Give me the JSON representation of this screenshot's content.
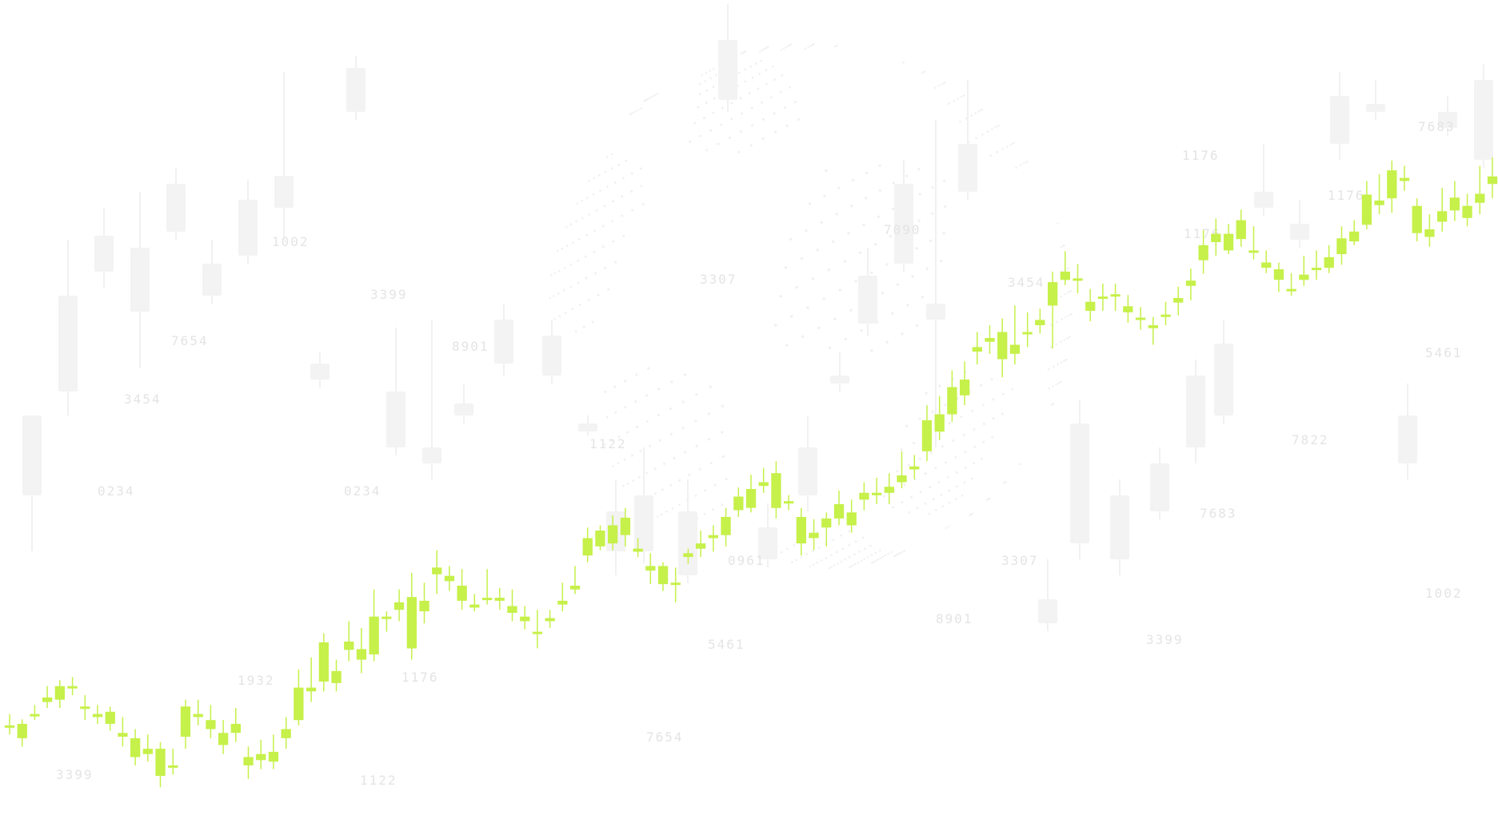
{
  "colors": {
    "accent": "#c6f04a",
    "background": "#ffffff",
    "ghost_text": "#e4e4e4",
    "globe_dots": "#f0f0f0"
  },
  "background_numbers": [
    "1002",
    "3399",
    "7654",
    "3454",
    "0234",
    "8901",
    "0234",
    "1122",
    "3307",
    "7090",
    "3454",
    "0961",
    "5461",
    "7654",
    "1932",
    "1176",
    "3307",
    "8901",
    "3399",
    "1176",
    "1176",
    "7683",
    "7822",
    "1176",
    "7683",
    "5461",
    "3399",
    "1002",
    "1122"
  ],
  "chart_data": {
    "type": "candlestick",
    "title": "",
    "xlabel": "",
    "ylabel": "",
    "ylim": [
      0,
      100
    ],
    "axes_visible": false,
    "grid": false,
    "legend": "none",
    "candles": [
      [
        12.2,
        12.4,
        11.2,
        13.9
      ],
      [
        12.6,
        10.7,
        9.6,
        13.2
      ],
      [
        13.6,
        13.9,
        13.1,
        15.1
      ],
      [
        15.5,
        16.1,
        14.7,
        17.6
      ],
      [
        15.8,
        17.6,
        14.7,
        18.4
      ],
      [
        17.6,
        17.4,
        16.4,
        18.8
      ],
      [
        14.7,
        14.9,
        13.1,
        16.4
      ],
      [
        13.9,
        13.5,
        12.6,
        15.1
      ],
      [
        14.2,
        12.6,
        11.7,
        14.9
      ],
      [
        11.4,
        10.9,
        9.6,
        13.5
      ],
      [
        10.7,
        8.2,
        7.1,
        11.9
      ],
      [
        8.6,
        9.3,
        7.6,
        11.2
      ],
      [
        9.3,
        5.7,
        4.2,
        10.2
      ],
      [
        6.8,
        7.1,
        5.9,
        9.3
      ],
      [
        10.9,
        14.9,
        9.3,
        15.8
      ],
      [
        13.9,
        13.5,
        12.4,
        15.8
      ],
      [
        11.9,
        13.1,
        10.7,
        15.1
      ],
      [
        11.4,
        9.8,
        8.6,
        13.1
      ],
      [
        11.4,
        12.6,
        10.2,
        14.7
      ],
      [
        7.1,
        8.2,
        5.3,
        9.6
      ],
      [
        7.8,
        8.6,
        6.6,
        10.5
      ],
      [
        8.9,
        7.6,
        6.6,
        11.2
      ],
      [
        10.7,
        11.9,
        9.3,
        13.5
      ],
      [
        13.1,
        17.4,
        12.4,
        19.8
      ],
      [
        17.4,
        16.9,
        15.5,
        21.4
      ],
      [
        18.2,
        23.4,
        16.9,
        24.6
      ],
      [
        19.6,
        18.0,
        16.9,
        21.1
      ],
      [
        22.4,
        23.5,
        20.9,
        26.2
      ],
      [
        22.5,
        21.1,
        19.3,
        25.3
      ],
      [
        21.8,
        26.8,
        20.9,
        30.4
      ],
      [
        26.5,
        26.8,
        24.8,
        27.5
      ],
      [
        27.7,
        28.7,
        26.2,
        30.4
      ],
      [
        29.4,
        22.6,
        21.1,
        32.6
      ],
      [
        27.5,
        28.9,
        25.9,
        31.3
      ],
      [
        33.3,
        32.4,
        29.8,
        35.6
      ],
      [
        32.2,
        31.5,
        30.2,
        33.5
      ],
      [
        30.9,
        28.9,
        27.7,
        33.1
      ],
      [
        28.4,
        28.0,
        27.5,
        29.8
      ],
      [
        29.3,
        29.3,
        28.4,
        33.1
      ],
      [
        28.9,
        29.3,
        27.7,
        30.6
      ],
      [
        28.2,
        27.3,
        26.2,
        30.4
      ],
      [
        26.8,
        26.2,
        25.1,
        28.2
      ],
      [
        24.8,
        24.8,
        22.6,
        27.7
      ],
      [
        26.2,
        26.6,
        25.3,
        27.7
      ],
      [
        28.4,
        28.9,
        27.5,
        31.3
      ],
      [
        30.4,
        30.9,
        29.8,
        33.5
      ],
      [
        34.9,
        37.2,
        34.0,
        38.6
      ],
      [
        36.1,
        38.2,
        35.6,
        38.9
      ],
      [
        38.9,
        36.5,
        35.6,
        40.2
      ],
      [
        37.6,
        39.9,
        36.1,
        41.2
      ],
      [
        35.4,
        35.8,
        34.7,
        37.2
      ],
      [
        32.9,
        33.5,
        31.1,
        35.2
      ],
      [
        33.5,
        31.1,
        30.2,
        34.0
      ],
      [
        31.3,
        31.3,
        28.7,
        33.3
      ],
      [
        34.7,
        35.2,
        33.8,
        35.8
      ],
      [
        35.8,
        36.5,
        34.7,
        38.2
      ],
      [
        37.2,
        37.6,
        35.4,
        38.9
      ],
      [
        37.6,
        40.0,
        36.1,
        41.2
      ],
      [
        40.9,
        42.7,
        40.0,
        43.9
      ],
      [
        43.7,
        41.2,
        40.6,
        45.6
      ],
      [
        44.6,
        44.1,
        43.2,
        46.5
      ],
      [
        45.8,
        41.2,
        39.8,
        47.4
      ],
      [
        42.1,
        42.1,
        40.9,
        42.9
      ],
      [
        36.5,
        40.0,
        34.9,
        41.2
      ],
      [
        37.2,
        37.9,
        35.6,
        39.7
      ],
      [
        38.6,
        39.8,
        36.1,
        40.6
      ],
      [
        39.8,
        41.7,
        38.9,
        43.5
      ],
      [
        40.6,
        38.9,
        37.9,
        42.3
      ],
      [
        42.3,
        43.2,
        40.9,
        44.6
      ],
      [
        43.2,
        43.2,
        41.7,
        45.2
      ],
      [
        44.0,
        43.2,
        41.7,
        45.8
      ],
      [
        44.6,
        45.5,
        43.8,
        48.7
      ],
      [
        46.3,
        46.7,
        45.0,
        48.2
      ],
      [
        48.7,
        52.8,
        47.4,
        54.8
      ],
      [
        51.3,
        53.6,
        50.2,
        56.0
      ],
      [
        53.6,
        57.2,
        52.6,
        59.4
      ],
      [
        56.1,
        58.2,
        54.8,
        60.6
      ],
      [
        62.5,
        61.9,
        60.2,
        64.5
      ],
      [
        63.7,
        63.2,
        61.6,
        65.4
      ],
      [
        60.9,
        64.5,
        58.5,
        66.3
      ],
      [
        62.8,
        61.6,
        60.2,
        68.0
      ],
      [
        64.5,
        64.5,
        62.5,
        67.1
      ],
      [
        65.4,
        66.1,
        64.3,
        67.6
      ],
      [
        68.0,
        71.1,
        62.3,
        72.5
      ],
      [
        71.4,
        72.5,
        70.7,
        75.2
      ],
      [
        71.6,
        71.4,
        69.6,
        73.5
      ],
      [
        68.5,
        67.3,
        65.9,
        70.2
      ],
      [
        69.2,
        69.2,
        67.3,
        70.9
      ],
      [
        69.2,
        69.5,
        67.3,
        70.9
      ],
      [
        67.9,
        67.1,
        65.7,
        69.4
      ],
      [
        66.4,
        66.1,
        64.8,
        67.8
      ],
      [
        65.4,
        65.0,
        62.8,
        66.5
      ],
      [
        66.8,
        66.8,
        65.4,
        68.5
      ],
      [
        68.4,
        69.0,
        66.7,
        70.5
      ],
      [
        70.6,
        71.3,
        68.7,
        72.9
      ],
      [
        74.0,
        76.0,
        72.2,
        78.0
      ],
      [
        76.4,
        77.5,
        74.6,
        79.5
      ],
      [
        77.5,
        75.3,
        74.8,
        78.8
      ],
      [
        79.3,
        76.8,
        75.8,
        80.7
      ],
      [
        75.3,
        75.3,
        74.1,
        78.5
      ],
      [
        73.0,
        73.7,
        72.3,
        75.3
      ],
      [
        72.8,
        71.4,
        69.8,
        73.7
      ],
      [
        70.2,
        70.0,
        69.3,
        72.3
      ],
      [
        71.4,
        72.1,
        70.6,
        74.6
      ],
      [
        72.8,
        73.0,
        71.4,
        75.3
      ],
      [
        74.4,
        73.0,
        72.3,
        76.0
      ],
      [
        74.8,
        76.9,
        73.4,
        78.5
      ],
      [
        76.5,
        77.8,
        76.0,
        79.3
      ],
      [
        78.7,
        82.7,
        78.1,
        84.5
      ],
      [
        81.9,
        81.3,
        80.1,
        85.4
      ],
      [
        82.2,
        85.9,
        80.3,
        87.2
      ],
      [
        84.5,
        84.9,
        83.2,
        86.5
      ],
      [
        81.2,
        77.6,
        76.5,
        82.2
      ],
      [
        77.1,
        78.1,
        75.8,
        80.1
      ],
      [
        79.1,
        80.5,
        77.8,
        83.6
      ],
      [
        80.6,
        82.3,
        79.2,
        84.5
      ],
      [
        81.2,
        79.6,
        78.5,
        82.8
      ],
      [
        81.6,
        82.8,
        80.1,
        86.5
      ],
      [
        84.1,
        85.1,
        82.2,
        87.6
      ]
    ]
  }
}
